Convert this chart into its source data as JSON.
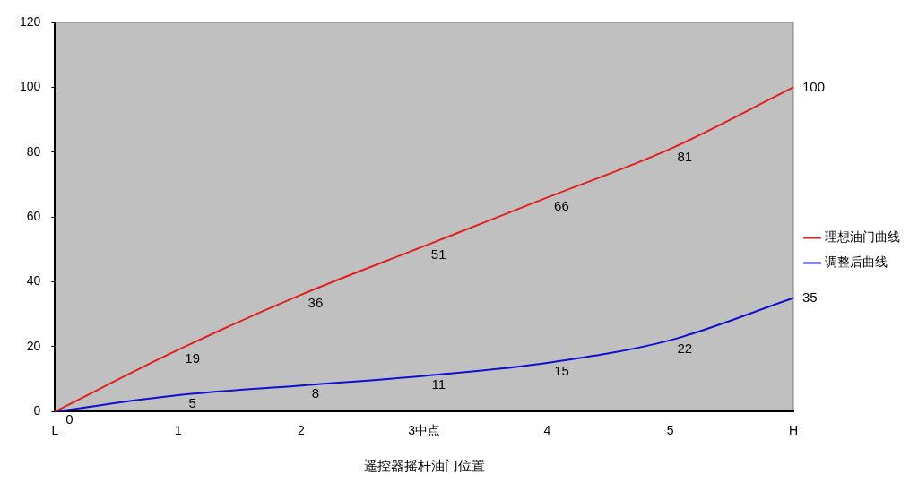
{
  "chart_data": {
    "type": "line",
    "xlabel": "遥控器摇杆油门位置",
    "categories": [
      "L",
      "1",
      "2",
      "3中点",
      "4",
      "5",
      "H"
    ],
    "series": [
      {
        "name": "理想油门曲线",
        "color": "#e02020",
        "values": [
          0,
          19,
          36,
          51,
          66,
          81,
          100
        ],
        "value_labels": [
          "0",
          "19",
          "36",
          "51",
          "66",
          "81",
          "100"
        ]
      },
      {
        "name": "调整后曲线",
        "color": "#1010d0",
        "values": [
          0,
          5,
          8,
          11,
          15,
          22,
          35
        ],
        "value_labels": [
          null,
          "5",
          "8",
          "11",
          "15",
          "22",
          "35"
        ]
      }
    ],
    "ylim": [
      0,
      120
    ],
    "yticks": [
      0,
      20,
      40,
      60,
      80,
      100,
      120
    ],
    "grid": false,
    "legend": "right",
    "marker": "none",
    "line_style": "solid"
  }
}
